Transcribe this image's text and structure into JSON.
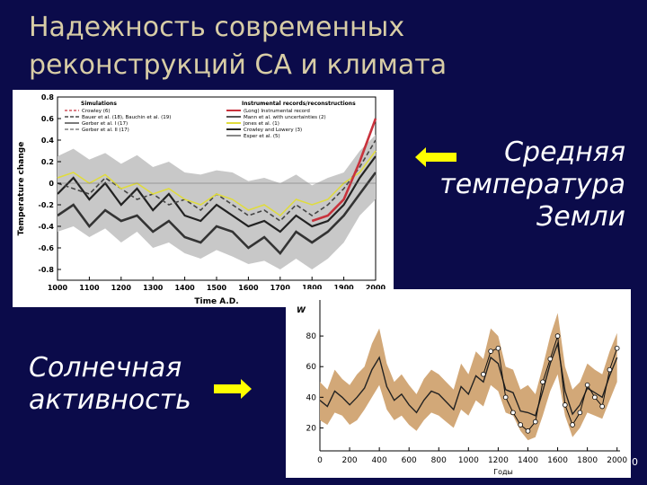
{
  "slide": {
    "title": "Надежность современных\nреконструкций СА и климата",
    "caption_temperature": "Средняя\nтемпература\nЗемли",
    "caption_solar": "Солнечная\nактивность",
    "page_number": "0"
  },
  "colors": {
    "background": "#0b0b4a",
    "title": "#d8cda6",
    "arrow": "#ffff00",
    "proxy_red": "#c8323c",
    "solar_band": "#d2a878"
  },
  "chart_data": [
    {
      "type": "line",
      "ylabel": "Temperature change",
      "xlabel": "Time A.D.",
      "xlim": [
        1000,
        2000
      ],
      "ylim": [
        -0.9,
        0.8
      ],
      "x_ticks": [
        1000,
        1100,
        1200,
        1300,
        1400,
        1500,
        1600,
        1700,
        1800,
        1900,
        2000
      ],
      "y_ticks": [
        -0.8,
        -0.6,
        -0.4,
        -0.2,
        0,
        0.2,
        0.4,
        0.6,
        0.8
      ],
      "legend_left_title": "Simulations",
      "legend_left": [
        "Crowley (6)",
        "Bauer et al. (18), Bauchin et al. (19)",
        "Gerber et al. I (17)",
        "Gerber et al. II (17)"
      ],
      "legend_right_title": "Instrumental records/reconstructions",
      "legend_right": [
        "(Long) Instrumental record",
        "Mann et al. with uncertainties (2)",
        "Jones et al. (1)",
        "Crowley and Lowery (3)",
        "Esper et al. (5)"
      ],
      "x": [
        1000,
        1050,
        1100,
        1150,
        1200,
        1250,
        1300,
        1350,
        1400,
        1450,
        1500,
        1550,
        1600,
        1650,
        1700,
        1750,
        1800,
        1850,
        1900,
        1950,
        2000
      ],
      "band_upper": [
        0.25,
        0.32,
        0.22,
        0.28,
        0.18,
        0.26,
        0.15,
        0.2,
        0.1,
        0.08,
        0.12,
        0.1,
        0.02,
        0.05,
        0.0,
        0.08,
        -0.02,
        0.05,
        0.1,
        0.3,
        0.45
      ],
      "band_lower": [
        -0.45,
        -0.4,
        -0.5,
        -0.42,
        -0.55,
        -0.45,
        -0.6,
        -0.55,
        -0.65,
        -0.7,
        -0.62,
        -0.68,
        -0.75,
        -0.72,
        -0.8,
        -0.7,
        -0.8,
        -0.7,
        -0.55,
        -0.3,
        -0.15
      ],
      "series": [
        {
          "values": [
            -0.1,
            0.05,
            -0.15,
            0.0,
            -0.2,
            -0.05,
            -0.25,
            -0.1,
            -0.3,
            -0.35,
            -0.2,
            -0.3,
            -0.4,
            -0.35,
            -0.45,
            -0.3,
            -0.4,
            -0.35,
            -0.2,
            0.05,
            0.25
          ]
        },
        {
          "values": [
            0.0,
            -0.05,
            -0.1,
            0.05,
            -0.05,
            -0.15,
            -0.1,
            -0.2,
            -0.15,
            -0.25,
            -0.1,
            -0.2,
            -0.3,
            -0.25,
            -0.35,
            -0.2,
            -0.3,
            -0.2,
            -0.05,
            0.15,
            0.4
          ]
        },
        {
          "values": [
            -0.3,
            -0.2,
            -0.4,
            -0.25,
            -0.35,
            -0.3,
            -0.45,
            -0.35,
            -0.5,
            -0.55,
            -0.4,
            -0.45,
            -0.6,
            -0.5,
            -0.65,
            -0.45,
            -0.55,
            -0.45,
            -0.3,
            -0.1,
            0.1
          ]
        },
        {
          "values": [
            0.05,
            0.1,
            0.0,
            0.08,
            -0.05,
            0.0,
            -0.1,
            -0.05,
            -0.15,
            -0.2,
            -0.1,
            -0.15,
            -0.25,
            -0.2,
            -0.3,
            -0.15,
            -0.2,
            -0.15,
            0.0,
            0.1,
            0.3
          ]
        },
        {
          "values": [
            null,
            null,
            null,
            null,
            null,
            null,
            null,
            null,
            null,
            null,
            null,
            null,
            null,
            null,
            null,
            null,
            -0.35,
            -0.3,
            -0.15,
            0.2,
            0.6
          ]
        }
      ]
    },
    {
      "type": "line",
      "ylabel": "W",
      "xlabel": "Годы",
      "xlim": [
        0,
        2020
      ],
      "ylim": [
        5,
        100
      ],
      "x_ticks": [
        0,
        200,
        400,
        600,
        800,
        1000,
        1200,
        1400,
        1600,
        1800,
        2000
      ],
      "y_ticks": [
        20,
        40,
        60,
        80
      ],
      "x": [
        0,
        50,
        100,
        150,
        200,
        250,
        300,
        350,
        400,
        450,
        500,
        550,
        600,
        650,
        700,
        750,
        800,
        850,
        900,
        950,
        1000,
        1050,
        1100,
        1150,
        1200,
        1250,
        1300,
        1350,
        1400,
        1450,
        1500,
        1550,
        1600,
        1650,
        1700,
        1750,
        1800,
        1850,
        1900,
        1950,
        2000
      ],
      "band_upper": [
        50,
        45,
        58,
        52,
        48,
        55,
        60,
        75,
        85,
        62,
        50,
        55,
        48,
        42,
        52,
        58,
        55,
        50,
        45,
        62,
        55,
        70,
        65,
        85,
        80,
        60,
        58,
        45,
        48,
        42,
        60,
        80,
        95,
        60,
        45,
        50,
        62,
        58,
        55,
        70,
        82
      ],
      "band_lower": [
        25,
        22,
        30,
        28,
        22,
        25,
        32,
        40,
        48,
        32,
        25,
        28,
        22,
        18,
        25,
        30,
        28,
        24,
        20,
        32,
        28,
        38,
        34,
        48,
        44,
        30,
        28,
        18,
        12,
        14,
        28,
        44,
        55,
        28,
        14,
        20,
        30,
        28,
        26,
        38,
        50
      ],
      "series": [
        {
          "values": [
            38,
            34,
            44,
            40,
            35,
            40,
            46,
            58,
            66,
            47,
            38,
            42,
            35,
            30,
            38,
            44,
            42,
            37,
            32,
            47,
            42,
            54,
            50,
            66,
            62,
            45,
            43,
            31,
            30,
            28,
            44,
            62,
            75,
            44,
            29,
            35,
            46,
            43,
            40,
            54,
            66
          ]
        },
        {
          "values": [
            null,
            null,
            null,
            null,
            null,
            null,
            null,
            null,
            null,
            null,
            null,
            null,
            null,
            null,
            null,
            null,
            null,
            null,
            null,
            null,
            null,
            null,
            55,
            70,
            72,
            40,
            30,
            22,
            18,
            24,
            50,
            65,
            80,
            35,
            22,
            30,
            48,
            40,
            34,
            58,
            72
          ]
        }
      ]
    }
  ]
}
